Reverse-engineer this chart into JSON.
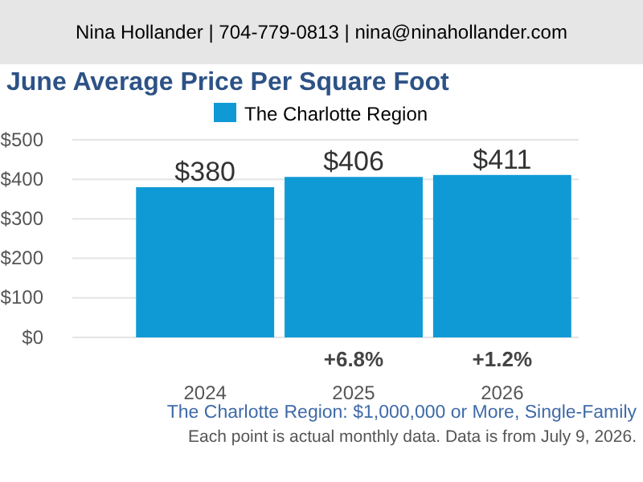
{
  "chart_data": {
    "type": "bar",
    "title": "June Average Price Per Square Foot",
    "subtitle": "The Charlotte Region: $1,000,000 or More, Single-Family",
    "categories": [
      "2024",
      "2025",
      "2026"
    ],
    "series": [
      {
        "name": "The Charlotte Region",
        "color": "#0f9ad6",
        "values": [
          380,
          406,
          411
        ],
        "value_labels": [
          "$380",
          "$406",
          "$411"
        ]
      }
    ],
    "ylim": [
      0,
      500
    ],
    "yticks": [
      {
        "value": 0,
        "label": "$0"
      },
      {
        "value": 100,
        "label": "$100"
      },
      {
        "value": 200,
        "label": "$200"
      },
      {
        "value": 300,
        "label": "$300"
      },
      {
        "value": 400,
        "label": "$400"
      },
      {
        "value": 500,
        "label": "$500"
      }
    ],
    "grid": "y",
    "legend": "top",
    "annotations": [
      "Nina Hollander | 704-779-0813 | nina@ninahollander.com",
      "+6.8%",
      "+1.2%",
      "Each point is actual monthly data. Data is from July 9, 2026."
    ]
  }
}
